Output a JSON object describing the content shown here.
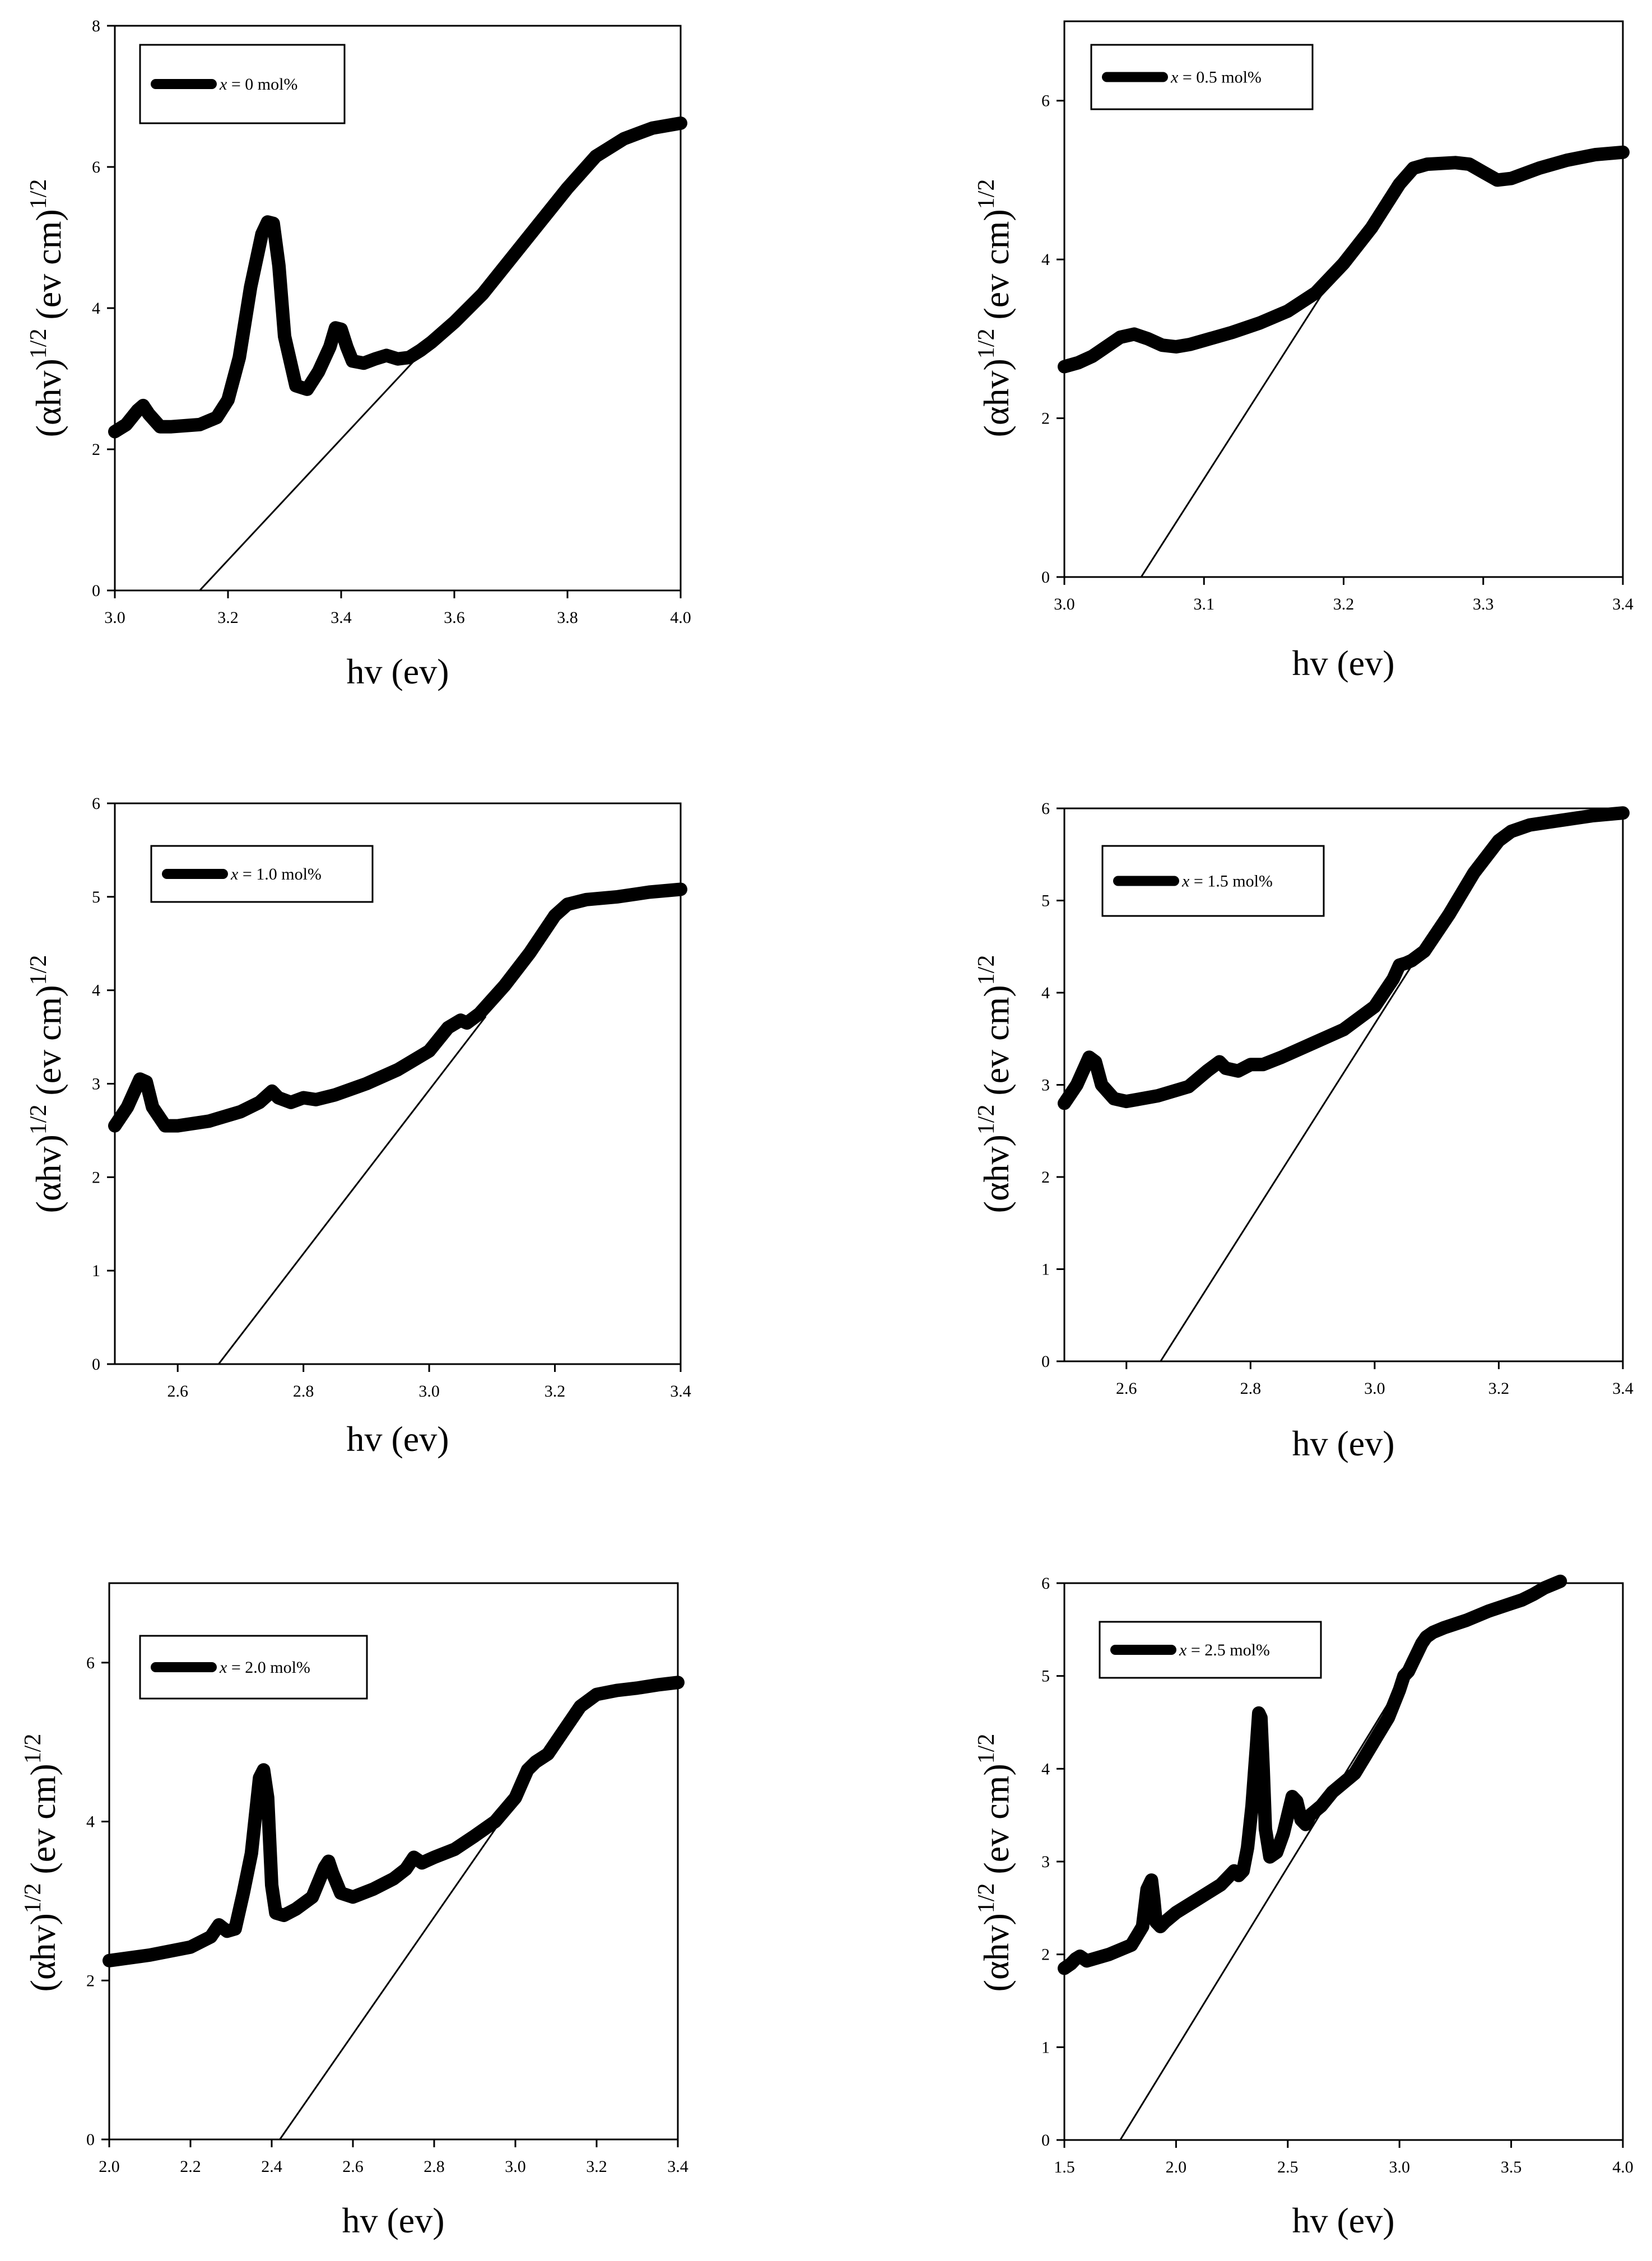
{
  "chart_data": [
    {
      "type": "line",
      "xlabel": "hv (ev)",
      "ylabel_main": "(αhv)",
      "ylabel_sup1": "1/2",
      "ylabel_unit": " (ev cm)",
      "ylabel_sup2": "1/2",
      "legend": {
        "var": "x",
        "text": " = 0 mol%"
      },
      "xlim": [
        3.0,
        4.0
      ],
      "ylim": [
        0,
        8
      ],
      "xticks": [
        "3.0",
        "3.2",
        "3.4",
        "3.6",
        "3.8",
        "4.0"
      ],
      "yticks": [
        "0",
        "2",
        "4",
        "6",
        "8"
      ],
      "series": {
        "name": "x = 0 mol%",
        "x": [
          3.0,
          3.02,
          3.04,
          3.05,
          3.06,
          3.08,
          3.1,
          3.15,
          3.18,
          3.2,
          3.22,
          3.24,
          3.26,
          3.27,
          3.28,
          3.29,
          3.3,
          3.32,
          3.34,
          3.36,
          3.38,
          3.39,
          3.4,
          3.41,
          3.42,
          3.44,
          3.46,
          3.48,
          3.5,
          3.52,
          3.54,
          3.56,
          3.6,
          3.65,
          3.7,
          3.75,
          3.8,
          3.85,
          3.9,
          3.95,
          4.0
        ],
        "y": [
          2.25,
          2.35,
          2.55,
          2.62,
          2.5,
          2.32,
          2.32,
          2.35,
          2.45,
          2.7,
          3.3,
          4.3,
          5.05,
          5.22,
          5.2,
          4.6,
          3.6,
          2.9,
          2.85,
          3.1,
          3.45,
          3.72,
          3.7,
          3.45,
          3.25,
          3.22,
          3.28,
          3.33,
          3.28,
          3.3,
          3.4,
          3.52,
          3.8,
          4.2,
          4.7,
          5.2,
          5.7,
          6.15,
          6.4,
          6.55,
          6.62
        ]
      },
      "tangent": [
        [
          3.15,
          0
        ],
        [
          3.56,
          3.52
        ]
      ]
    },
    {
      "type": "line",
      "xlabel": "hv (ev)",
      "ylabel_main": "(αhv)",
      "ylabel_sup1": "1/2",
      "ylabel_unit": " (ev cm)",
      "ylabel_sup2": "1/2",
      "legend": {
        "var": "x",
        "text": " = 0.5 mol%"
      },
      "xlim": [
        3.0,
        3.4
      ],
      "ylim": [
        0,
        7
      ],
      "xticks": [
        "3.0",
        "3.1",
        "3.2",
        "3.3",
        "3.4"
      ],
      "yticks": [
        "0",
        "2",
        "4",
        "6"
      ],
      "series": {
        "name": "x = 0.5 mol%",
        "x": [
          3.0,
          3.01,
          3.02,
          3.03,
          3.04,
          3.05,
          3.06,
          3.07,
          3.08,
          3.09,
          3.1,
          3.12,
          3.14,
          3.16,
          3.18,
          3.2,
          3.22,
          3.24,
          3.25,
          3.26,
          3.28,
          3.29,
          3.3,
          3.31,
          3.32,
          3.34,
          3.36,
          3.38,
          3.4
        ],
        "y": [
          2.65,
          2.7,
          2.78,
          2.9,
          3.02,
          3.06,
          3.0,
          2.92,
          2.9,
          2.93,
          2.98,
          3.08,
          3.2,
          3.35,
          3.58,
          3.95,
          4.4,
          4.95,
          5.15,
          5.2,
          5.22,
          5.2,
          5.1,
          5.0,
          5.02,
          5.15,
          5.25,
          5.32,
          5.35
        ]
      },
      "tangent": [
        [
          3.055,
          0
        ],
        [
          3.195,
          3.85
        ]
      ]
    },
    {
      "type": "line",
      "xlabel": "hv (ev)",
      "ylabel_main": "(αhv)",
      "ylabel_sup1": "1/2",
      "ylabel_unit": " (ev cm)",
      "ylabel_sup2": "1/2",
      "legend": {
        "var": "x",
        "text": " = 1.0 mol%"
      },
      "xlim": [
        2.5,
        3.4
      ],
      "ylim": [
        0,
        6
      ],
      "xticks": [
        "2.6",
        "2.8",
        "3.0",
        "3.2",
        "3.4"
      ],
      "yticks": [
        "0",
        "1",
        "2",
        "3",
        "4",
        "5",
        "6"
      ],
      "series": {
        "name": "x = 1.0 mol%",
        "x": [
          2.5,
          2.52,
          2.54,
          2.55,
          2.56,
          2.58,
          2.6,
          2.65,
          2.7,
          2.73,
          2.75,
          2.76,
          2.78,
          2.8,
          2.82,
          2.85,
          2.9,
          2.95,
          3.0,
          3.03,
          3.05,
          3.06,
          3.08,
          3.12,
          3.16,
          3.2,
          3.22,
          3.25,
          3.3,
          3.35,
          3.4
        ],
        "y": [
          2.55,
          2.75,
          3.05,
          3.02,
          2.75,
          2.55,
          2.55,
          2.6,
          2.7,
          2.8,
          2.92,
          2.85,
          2.8,
          2.85,
          2.83,
          2.88,
          3.0,
          3.15,
          3.35,
          3.6,
          3.68,
          3.65,
          3.75,
          4.05,
          4.4,
          4.8,
          4.92,
          4.97,
          5.0,
          5.05,
          5.08
        ]
      },
      "tangent": [
        [
          2.665,
          0
        ],
        [
          3.09,
          3.72
        ]
      ]
    },
    {
      "type": "line",
      "xlabel": "hv (ev)",
      "ylabel_main": "(αhv)",
      "ylabel_sup1": "1/2",
      "ylabel_unit": " (ev cm)",
      "ylabel_sup2": "1/2",
      "legend": {
        "var": "x",
        "text": " = 1.5 mol%"
      },
      "xlim": [
        2.5,
        3.4
      ],
      "ylim": [
        0,
        6
      ],
      "xticks": [
        "2.6",
        "2.8",
        "3.0",
        "3.2",
        "3.4"
      ],
      "yticks": [
        "0",
        "1",
        "2",
        "3",
        "4",
        "5",
        "6"
      ],
      "series": {
        "name": "x = 1.5 mol%",
        "x": [
          2.5,
          2.52,
          2.54,
          2.55,
          2.56,
          2.58,
          2.6,
          2.65,
          2.7,
          2.73,
          2.75,
          2.76,
          2.78,
          2.8,
          2.82,
          2.85,
          2.9,
          2.95,
          3.0,
          3.03,
          3.04,
          3.05,
          3.06,
          3.08,
          3.12,
          3.16,
          3.2,
          3.22,
          3.25,
          3.3,
          3.35,
          3.4
        ],
        "y": [
          2.8,
          3.0,
          3.3,
          3.25,
          3.0,
          2.85,
          2.82,
          2.88,
          2.98,
          3.15,
          3.25,
          3.18,
          3.15,
          3.22,
          3.22,
          3.3,
          3.45,
          3.6,
          3.85,
          4.15,
          4.3,
          4.32,
          4.35,
          4.45,
          4.85,
          5.3,
          5.65,
          5.75,
          5.82,
          5.87,
          5.92,
          5.95
        ]
      },
      "tangent": [
        [
          2.655,
          0
        ],
        [
          3.065,
          4.35
        ]
      ]
    },
    {
      "type": "line",
      "xlabel": "hv (ev)",
      "ylabel_main": "(αhv)",
      "ylabel_sup1": "1/2",
      "ylabel_unit": " (ev cm)",
      "ylabel_sup2": "1/2",
      "legend": {
        "var": "x",
        "text": " = 2.0 mol%"
      },
      "xlim": [
        2.0,
        3.4
      ],
      "ylim": [
        0,
        7
      ],
      "xticks": [
        "2.0",
        "2.2",
        "2.4",
        "2.6",
        "2.8",
        "3.0",
        "3.2",
        "3.4"
      ],
      "yticks": [
        "0",
        "2",
        "4",
        "6"
      ],
      "series": {
        "name": "x = 2.0 mol%",
        "x": [
          2.0,
          2.1,
          2.2,
          2.25,
          2.27,
          2.29,
          2.31,
          2.33,
          2.35,
          2.37,
          2.38,
          2.39,
          2.4,
          2.41,
          2.43,
          2.46,
          2.5,
          2.53,
          2.54,
          2.55,
          2.57,
          2.6,
          2.65,
          2.7,
          2.73,
          2.75,
          2.77,
          2.8,
          2.85,
          2.9,
          2.95,
          3.0,
          3.03,
          3.05,
          3.08,
          3.12,
          3.16,
          3.2,
          3.25,
          3.3,
          3.35,
          3.4
        ],
        "y": [
          2.25,
          2.32,
          2.42,
          2.55,
          2.7,
          2.62,
          2.65,
          3.1,
          3.6,
          4.55,
          4.65,
          4.3,
          3.2,
          2.85,
          2.82,
          2.9,
          3.05,
          3.42,
          3.5,
          3.35,
          3.1,
          3.05,
          3.15,
          3.28,
          3.4,
          3.55,
          3.48,
          3.55,
          3.65,
          3.82,
          4.0,
          4.3,
          4.65,
          4.75,
          4.85,
          5.15,
          5.45,
          5.6,
          5.65,
          5.68,
          5.72,
          5.75
        ]
      },
      "tangent": [
        [
          2.42,
          0
        ],
        [
          2.97,
          4.05
        ]
      ]
    },
    {
      "type": "line",
      "xlabel": "hv (ev)",
      "ylabel_main": "(αhv)",
      "ylabel_sup1": "1/2",
      "ylabel_unit": " (ev cm)",
      "ylabel_sup2": "1/2",
      "legend": {
        "var": "x",
        "text": " = 2.5 mol%"
      },
      "xlim": [
        1.5,
        4.0
      ],
      "ylim": [
        0,
        6
      ],
      "xticks": [
        "1.5",
        "2.0",
        "2.5",
        "3.0",
        "3.5",
        "4.0"
      ],
      "yticks": [
        "0",
        "1",
        "2",
        "3",
        "4",
        "5",
        "6"
      ],
      "series": {
        "name": "x = 2.5 mol%",
        "x": [
          1.5,
          1.53,
          1.55,
          1.57,
          1.6,
          1.7,
          1.8,
          1.85,
          1.87,
          1.89,
          1.9,
          1.91,
          1.93,
          1.95,
          2.0,
          2.1,
          2.2,
          2.26,
          2.28,
          2.3,
          2.32,
          2.34,
          2.36,
          2.37,
          2.38,
          2.39,
          2.4,
          2.42,
          2.45,
          2.48,
          2.5,
          2.52,
          2.54,
          2.56,
          2.58,
          2.6,
          2.65,
          2.7,
          2.75,
          2.8,
          2.85,
          2.9,
          2.95,
          3.0,
          3.02,
          3.04,
          3.06,
          3.08,
          3.1,
          3.12,
          3.15,
          3.2,
          3.3,
          3.4,
          3.5,
          3.55,
          3.6,
          3.65,
          3.7,
          3.72
        ],
        "y": [
          1.85,
          1.9,
          1.95,
          1.98,
          1.93,
          2.0,
          2.1,
          2.3,
          2.7,
          2.8,
          2.6,
          2.35,
          2.3,
          2.35,
          2.45,
          2.6,
          2.75,
          2.9,
          2.85,
          2.9,
          3.15,
          3.6,
          4.25,
          4.6,
          4.55,
          4.0,
          3.35,
          3.05,
          3.1,
          3.3,
          3.5,
          3.7,
          3.65,
          3.45,
          3.4,
          3.5,
          3.6,
          3.75,
          3.85,
          3.95,
          4.15,
          4.35,
          4.55,
          4.85,
          5.0,
          5.05,
          5.15,
          5.25,
          5.35,
          5.42,
          5.47,
          5.52,
          5.6,
          5.7,
          5.78,
          5.82,
          5.88,
          5.95,
          6.0,
          6.02
        ]
      },
      "tangent": [
        [
          1.75,
          0
        ],
        [
          3.05,
          5.1
        ]
      ]
    }
  ]
}
